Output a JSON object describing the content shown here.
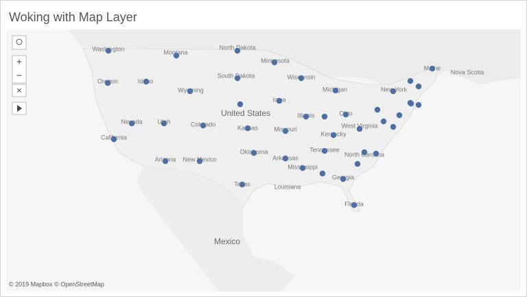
{
  "header": {
    "title": "Woking with Map Layer"
  },
  "map": {
    "labels": [
      "Washington",
      "Montana",
      "North Dakota",
      "Minnesota",
      "South Dakota",
      "Wisconsin",
      "Michigan",
      "New York",
      "Maine",
      "Nova Scotia",
      "Oregon",
      "Idaho",
      "Wyoming",
      "Iowa",
      "United States",
      "Nevada",
      "Utah",
      "Colorado",
      "Kansas",
      "Illinois",
      "Ohio",
      "West Virginia",
      "Kentucky",
      "Missouri",
      "California",
      "Oklahoma",
      "Tennessee",
      "North Carolina",
      "Arizona",
      "New Mexico",
      "Arkansas",
      "Mississippi",
      "Georgia",
      "Texas",
      "Louisiana",
      "Florida",
      "Mexico"
    ],
    "attribution": "© 2019 Mapbox © OpenStreetMap"
  }
}
